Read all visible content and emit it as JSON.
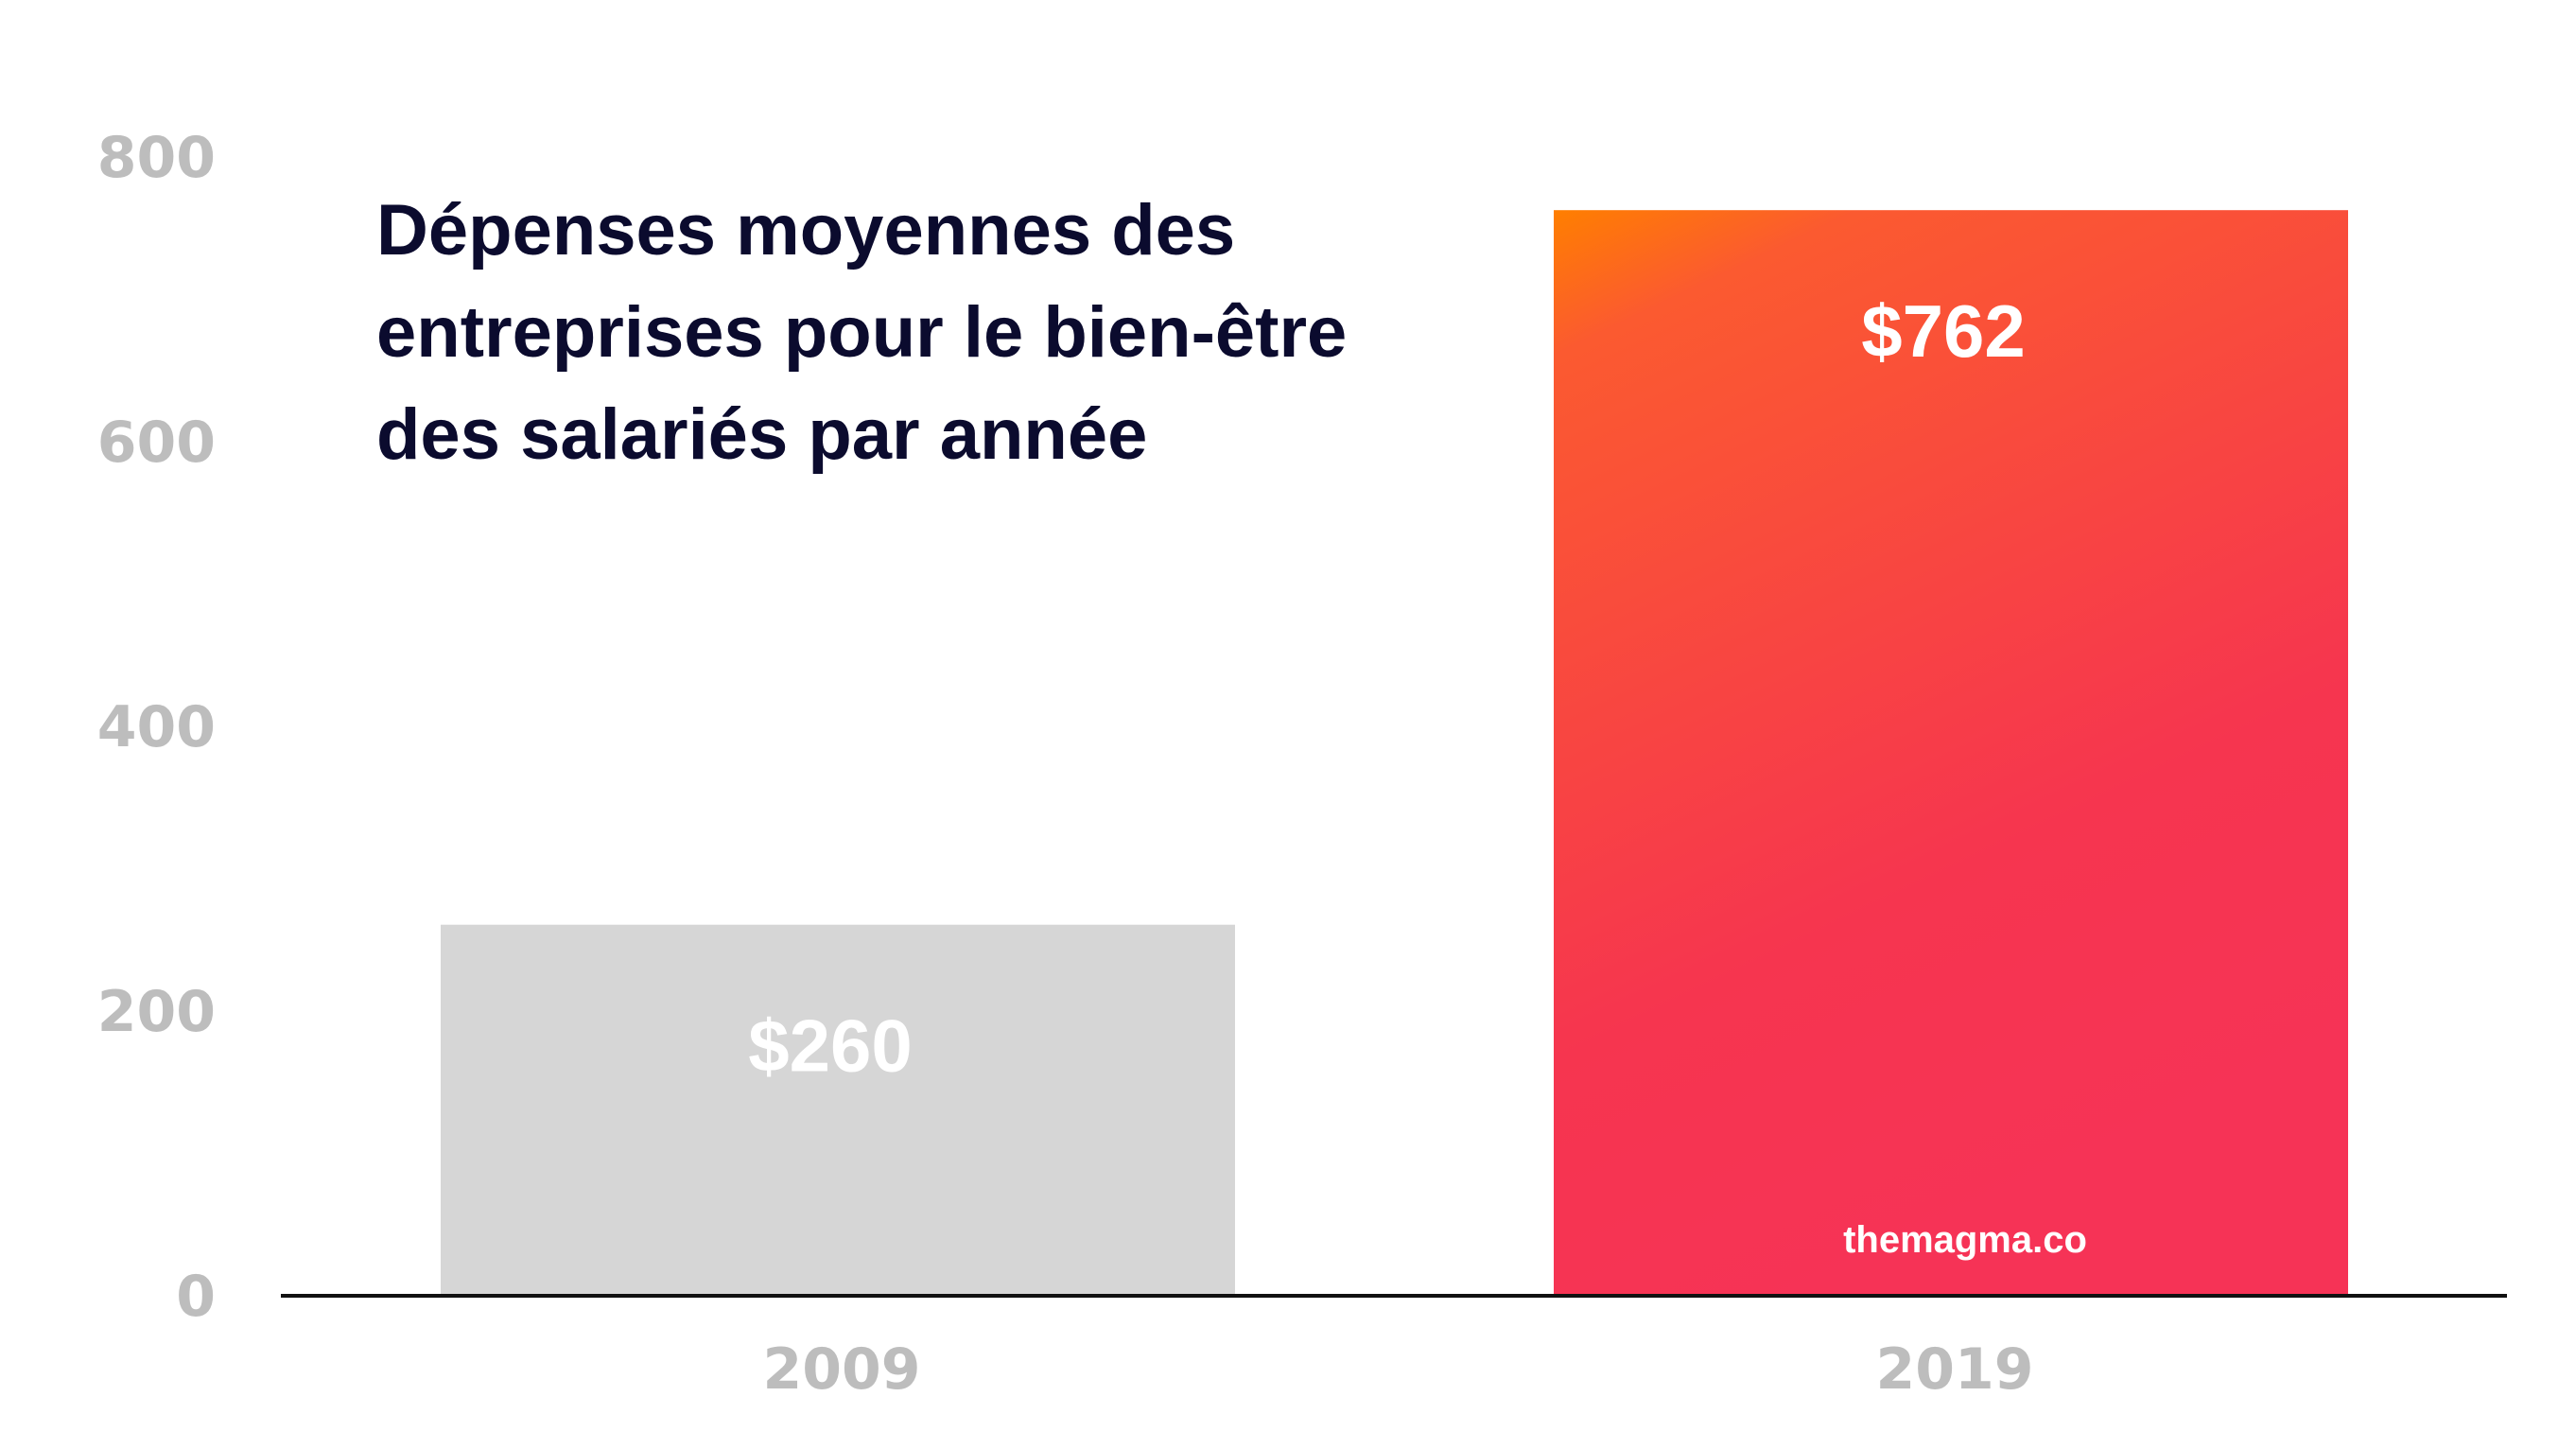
{
  "chart_data": {
    "type": "bar",
    "title": "Dépenses moyennes des entreprises pour le bien-être des salariés par année",
    "categories": [
      "2009",
      "2019"
    ],
    "values": [
      260,
      762
    ],
    "data_labels": [
      "$260",
      "$762"
    ],
    "xlabel": "",
    "ylabel": "",
    "ylim": [
      0,
      800
    ],
    "yticks": [
      0,
      200,
      400,
      600,
      800
    ],
    "grid": false,
    "bar_colors": [
      "#d6d6d6",
      "gradient:#ff7f00-#f63356"
    ],
    "watermark": "themagma.co"
  }
}
